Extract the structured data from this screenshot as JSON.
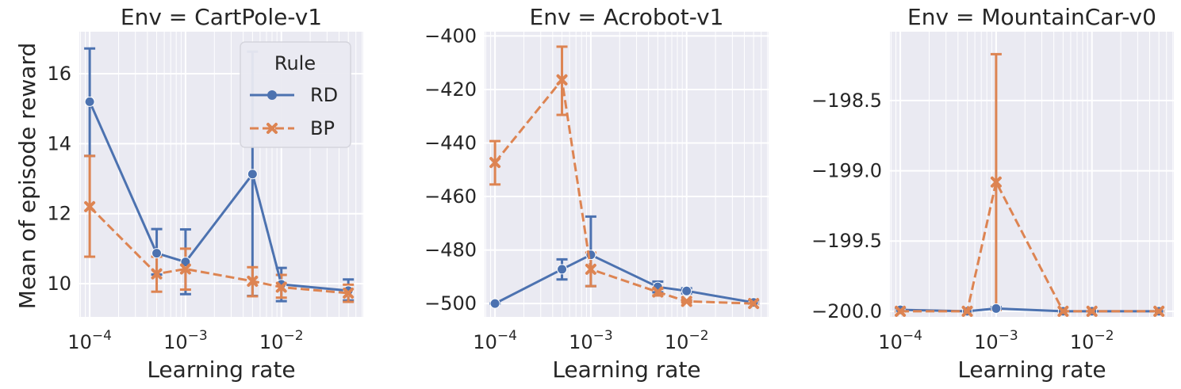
{
  "figure": {
    "ylabel": "Mean of episode reward",
    "legend": {
      "title": "Rule",
      "placement": "top-right of first panel",
      "entries": [
        {
          "name": "RD",
          "color": "#4c72b0",
          "marker": "circle",
          "dash": "solid"
        },
        {
          "name": "BP",
          "color": "#dd8452",
          "marker": "x",
          "dash": "dashed"
        }
      ]
    }
  },
  "chart_data": [
    {
      "type": "line",
      "title": "Env = CartPole-v1",
      "xlabel": "Learning rate",
      "ylabel": "Mean of episode reward",
      "xscale": "log",
      "xlim": [
        7.79e-05,
        0.0716
      ],
      "ylim": [
        9.05,
        17.2
      ],
      "xticks": [
        {
          "v": 0.0001,
          "base": "10",
          "exp": "−4"
        },
        {
          "v": 0.001,
          "base": "10",
          "exp": "−3"
        },
        {
          "v": 0.01,
          "base": "10",
          "exp": "−2"
        }
      ],
      "yticks": [
        {
          "v": 10,
          "label": "10"
        },
        {
          "v": 12,
          "label": "12"
        },
        {
          "v": 14,
          "label": "14"
        },
        {
          "v": 16,
          "label": "16"
        }
      ],
      "x": [
        0.0001,
        0.0005,
        0.001,
        0.005,
        0.01,
        0.05
      ],
      "series": [
        {
          "name": "RD",
          "values": [
            15.2,
            10.87,
            10.62,
            13.13,
            9.98,
            9.8
          ],
          "err_low": [
            13.65,
            10.26,
            9.7,
            9.65,
            9.5,
            9.52
          ],
          "err_high": [
            16.72,
            11.56,
            11.55,
            16.63,
            10.45,
            10.12
          ]
        },
        {
          "name": "BP",
          "values": [
            12.2,
            10.28,
            10.42,
            10.07,
            9.9,
            9.73
          ],
          "err_low": [
            10.77,
            9.77,
            9.83,
            9.64,
            9.6,
            9.48
          ],
          "err_high": [
            13.65,
            10.77,
            11.0,
            10.47,
            10.25,
            9.97
          ]
        }
      ]
    },
    {
      "type": "line",
      "title": "Env = Acrobot-v1",
      "xlabel": "Learning rate",
      "ylabel": "",
      "xscale": "log",
      "xlim": [
        7.79e-05,
        0.0716
      ],
      "ylim": [
        -505,
        -398.4
      ],
      "xticks": [
        {
          "v": 0.0001,
          "base": "10",
          "exp": "−4"
        },
        {
          "v": 0.001,
          "base": "10",
          "exp": "−3"
        },
        {
          "v": 0.01,
          "base": "10",
          "exp": "−2"
        }
      ],
      "yticks": [
        {
          "v": -500,
          "label": "−500"
        },
        {
          "v": -480,
          "label": "−480"
        },
        {
          "v": -460,
          "label": "−460"
        },
        {
          "v": -440,
          "label": "−440"
        },
        {
          "v": -420,
          "label": "−420"
        },
        {
          "v": -400,
          "label": "−400"
        }
      ],
      "x": [
        0.0001,
        0.0005,
        0.001,
        0.005,
        0.01,
        0.05
      ],
      "series": [
        {
          "name": "RD",
          "values": [
            -500,
            -487.2,
            -481.8,
            -493.8,
            -495.3,
            -499.6
          ],
          "err_low": [
            -500,
            -491.0,
            -493.5,
            -495.8,
            -496.2,
            -500
          ],
          "err_high": [
            -500,
            -483.5,
            -467.5,
            -491.8,
            -494.3,
            -499.1
          ]
        },
        {
          "name": "BP",
          "values": [
            -447.3,
            -416.4,
            -487.2,
            -495.7,
            -499.2,
            -500
          ],
          "err_low": [
            -455.5,
            -429.5,
            -493.5,
            -497.0,
            -499.6,
            -500
          ],
          "err_high": [
            -439.3,
            -404.0,
            -481.0,
            -494.5,
            -498.8,
            -500
          ]
        }
      ]
    },
    {
      "type": "line",
      "title": "Env = MountainCar-v0",
      "xlabel": "Learning rate",
      "ylabel": "",
      "xscale": "log",
      "xlim": [
        7.79e-05,
        0.0716
      ],
      "ylim": [
        -200.04,
        -198.01
      ],
      "xticks": [
        {
          "v": 0.0001,
          "base": "10",
          "exp": "−4"
        },
        {
          "v": 0.001,
          "base": "10",
          "exp": "−3"
        },
        {
          "v": 0.01,
          "base": "10",
          "exp": "−2"
        }
      ],
      "yticks": [
        {
          "v": -200.0,
          "label": "−200.0"
        },
        {
          "v": -199.5,
          "label": "−199.5"
        },
        {
          "v": -199.0,
          "label": "−199.0"
        },
        {
          "v": -198.5,
          "label": "−198.5"
        }
      ],
      "x": [
        0.0001,
        0.0005,
        0.001,
        0.005,
        0.01,
        0.05
      ],
      "series": [
        {
          "name": "RD",
          "values": [
            -199.99,
            -200.0,
            -199.98,
            -200.0,
            -200.0,
            -200.0
          ],
          "err_low": [
            -200.0,
            -200.0,
            -199.99,
            -200.0,
            -200.0,
            -200.0
          ],
          "err_high": [
            -199.98,
            -200.0,
            -199.97,
            -200.0,
            -200.0,
            -200.0
          ]
        },
        {
          "name": "BP",
          "values": [
            -200.0,
            -200.0,
            -199.08,
            -200.0,
            -200.0,
            -200.0
          ],
          "err_low": [
            -200.0,
            -200.0,
            -199.99,
            -200.0,
            -200.0,
            -200.0
          ],
          "err_high": [
            -200.0,
            -200.0,
            -198.17,
            -200.0,
            -200.0,
            -200.0
          ]
        }
      ]
    }
  ]
}
